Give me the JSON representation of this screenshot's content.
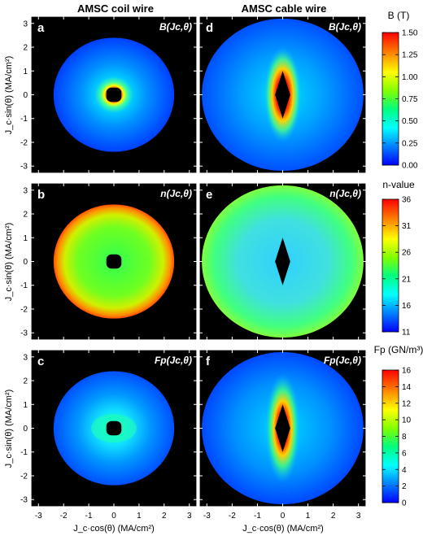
{
  "columns": [
    "AMSC coil wire",
    "AMSC cable wire"
  ],
  "y_axis_label": "J_c·sin(θ) (MA/cm²)",
  "x_axis_label": "J_c·cos(θ) (MA/cm²)",
  "chart_data": [
    {
      "type": "heatmap",
      "panel": "a",
      "quantity": "B(Jc,θ)",
      "column": "AMSC coil wire",
      "xlim": [
        -3.3,
        3.3
      ],
      "ylim": [
        -3.3,
        3.3
      ],
      "xticks": [
        -3,
        -2,
        -1,
        0,
        1,
        2,
        3
      ],
      "yticks": [
        -3,
        -2,
        -1,
        0,
        1,
        2,
        3
      ],
      "outer_radius": 2.4,
      "hole": "rounded-square",
      "hole_radius": 0.3
    },
    {
      "type": "heatmap",
      "panel": "b",
      "quantity": "n(Jc,θ)",
      "column": "AMSC coil wire",
      "xlim": [
        -3.3,
        3.3
      ],
      "ylim": [
        -3.3,
        3.3
      ],
      "outer_radius": 2.4,
      "hole": "rounded-square",
      "hole_radius": 0.3
    },
    {
      "type": "heatmap",
      "panel": "c",
      "quantity": "Fp(Jc,θ)",
      "column": "AMSC coil wire",
      "xlim": [
        -3.3,
        3.3
      ],
      "ylim": [
        -3.3,
        3.3
      ],
      "outer_radius": 2.4,
      "hole": "rounded-square",
      "hole_radius": 0.3
    },
    {
      "type": "heatmap",
      "panel": "d",
      "quantity": "B(Jc,θ)",
      "column": "AMSC cable wire",
      "xlim": [
        -3.3,
        3.3
      ],
      "ylim": [
        -3.3,
        3.3
      ],
      "outer_radius": 3.2,
      "hole": "diamond",
      "hole_half_width": 0.3,
      "hole_half_height": 1.0
    },
    {
      "type": "heatmap",
      "panel": "e",
      "quantity": "n(Jc,θ)",
      "column": "AMSC cable wire",
      "xlim": [
        -3.3,
        3.3
      ],
      "ylim": [
        -3.3,
        3.3
      ],
      "outer_radius": 3.2,
      "hole": "diamond",
      "hole_half_width": 0.3,
      "hole_half_height": 1.0
    },
    {
      "type": "heatmap",
      "panel": "f",
      "quantity": "Fp(Jc,θ)",
      "column": "AMSC cable wire",
      "xlim": [
        -3.3,
        3.3
      ],
      "ylim": [
        -3.3,
        3.3
      ],
      "outer_radius": 3.2,
      "hole": "diamond",
      "hole_half_width": 0.3,
      "hole_half_height": 1.0
    }
  ],
  "colorbars": [
    {
      "title": "B (T)",
      "ticks": [
        "0.00",
        "0.25",
        "0.50",
        "0.75",
        "1.00",
        "1.25",
        "1.50"
      ],
      "range": [
        0,
        1.5
      ]
    },
    {
      "title": "n-value",
      "ticks": [
        "11",
        "16",
        "21",
        "26",
        "31",
        "36"
      ],
      "range": [
        11,
        36
      ]
    },
    {
      "title": "Fp (GN/m³)",
      "ticks": [
        "0",
        "2",
        "4",
        "6",
        "8",
        "10",
        "12",
        "14",
        "16"
      ],
      "range": [
        0,
        16
      ]
    }
  ],
  "colors": {
    "background": "#000000",
    "frame": "#ffffff",
    "colormap": [
      "#0000ff",
      "#0080ff",
      "#00ffff",
      "#00ff80",
      "#80ff00",
      "#ffff00",
      "#ff8000",
      "#ff0000"
    ]
  }
}
